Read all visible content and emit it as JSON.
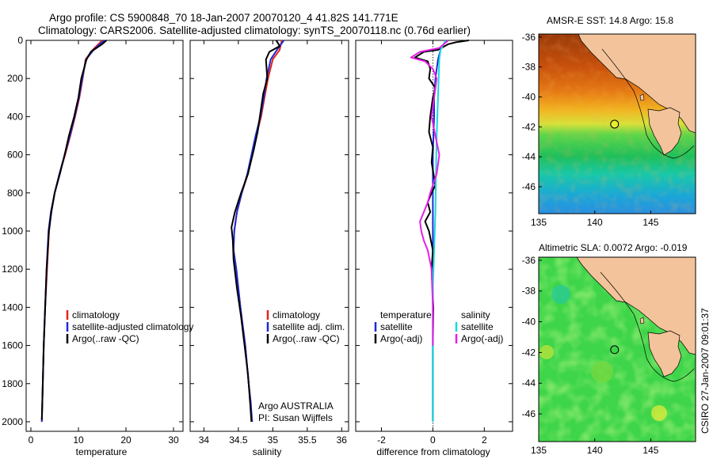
{
  "header": {
    "line1": "Argo profile: CS 5900848_70 18-Jan-2007 20070120_4 41.82S 141.771E",
    "line2": "Climatology: CARS2006. Satellite-adjusted climatology: synTS_20070118.nc (0.76d earlier)"
  },
  "side_note": "CSIRO 27-Jan-2007 09:01:37",
  "colors": {
    "climatology": "#e8211b",
    "satellite": "#1c2bd6",
    "argo": "#000000",
    "sat_salinity": "#17d8df",
    "argo_adj_salinity": "#e61fe6",
    "land": "#f3c39b"
  },
  "chart_data": [
    {
      "type": "line",
      "id": "temperature",
      "xlabel": "temperature",
      "ylabel": "",
      "xlim": [
        -1,
        32
      ],
      "ylim": [
        2050,
        0
      ],
      "xticks": [
        0,
        10,
        20,
        30
      ],
      "yticks": [
        0,
        200,
        400,
        600,
        800,
        1000,
        1200,
        1400,
        1600,
        1800,
        2000
      ],
      "legend": [
        "climatology",
        "satellite-adjusted climatology",
        "Argo(..raw -QC)"
      ],
      "series": [
        {
          "name": "climatology",
          "color": "#e8211b",
          "x": [
            15.0,
            14.2,
            13.0,
            11.5,
            10.9,
            10.2,
            9.3,
            8.3,
            7.2,
            6.0,
            5.0,
            4.3,
            3.8,
            3.4,
            3.0,
            2.7,
            2.5,
            2.4,
            2.3
          ],
          "y": [
            0,
            20,
            50,
            100,
            200,
            300,
            400,
            500,
            600,
            700,
            800,
            900,
            1000,
            1200,
            1400,
            1600,
            1800,
            1900,
            2000
          ]
        },
        {
          "name": "satellite",
          "color": "#1c2bd6",
          "x": [
            15.5,
            14.5,
            13.2,
            11.6,
            10.8,
            10.1,
            9.2,
            8.2,
            7.1,
            6.0,
            5.0,
            4.2,
            3.7,
            3.3,
            3.0,
            2.7,
            2.5,
            2.4,
            2.3
          ],
          "y": [
            0,
            20,
            50,
            100,
            200,
            300,
            400,
            500,
            600,
            700,
            800,
            900,
            1000,
            1200,
            1400,
            1600,
            1800,
            1900,
            2000
          ]
        },
        {
          "name": "Argo",
          "color": "#000000",
          "x": [
            15.9,
            15.0,
            12.6,
            11.7,
            10.6,
            10.0,
            9.1,
            8.0,
            7.1,
            6.1,
            5.0,
            4.3,
            3.8,
            3.3,
            3.0,
            2.7,
            2.5,
            2.4,
            2.3
          ],
          "y": [
            0,
            20,
            60,
            100,
            200,
            300,
            400,
            500,
            600,
            700,
            800,
            900,
            1000,
            1200,
            1400,
            1600,
            1800,
            1900,
            1990
          ]
        }
      ]
    },
    {
      "type": "line",
      "id": "salinity",
      "xlabel": "salinity",
      "xlim": [
        33.8,
        36.1
      ],
      "ylim": [
        2050,
        0
      ],
      "xticks": [
        34,
        34.5,
        35,
        35.5,
        36
      ],
      "legend": [
        "climatology",
        "satellite adj. clim.",
        "Argo(..raw -QC)"
      ],
      "annotation": [
        "Argo AUSTRALIA",
        "PI: Susan Wijffels"
      ],
      "series": [
        {
          "name": "climatology",
          "color": "#e8211b",
          "x": [
            35.13,
            35.1,
            35.0,
            34.93,
            34.88,
            34.83,
            34.76,
            34.7,
            34.64,
            34.55,
            34.48,
            34.44,
            34.43,
            34.47,
            34.53,
            34.6,
            34.65,
            34.68,
            34.69
          ],
          "y": [
            0,
            50,
            100,
            200,
            300,
            400,
            500,
            600,
            700,
            800,
            900,
            1000,
            1100,
            1200,
            1400,
            1600,
            1800,
            1900,
            2000
          ]
        },
        {
          "name": "satellite",
          "color": "#1c2bd6",
          "x": [
            35.16,
            35.06,
            34.97,
            34.91,
            34.87,
            34.82,
            34.75,
            34.69,
            34.63,
            34.55,
            34.48,
            34.44,
            34.43,
            34.47,
            34.53,
            34.6,
            34.65,
            34.68,
            34.7
          ],
          "y": [
            0,
            50,
            100,
            200,
            300,
            400,
            500,
            600,
            700,
            800,
            900,
            1000,
            1100,
            1200,
            1400,
            1600,
            1800,
            1900,
            2000
          ]
        },
        {
          "name": "Argo",
          "color": "#000000",
          "x": [
            35.05,
            35.1,
            34.95,
            34.9,
            34.92,
            34.86,
            34.82,
            34.78,
            34.72,
            34.64,
            34.54,
            34.45,
            34.4,
            34.42,
            34.43,
            34.48,
            34.54,
            34.59,
            34.64,
            34.67,
            34.69
          ],
          "y": [
            0,
            30,
            60,
            100,
            200,
            280,
            380,
            480,
            580,
            700,
            800,
            900,
            980,
            1050,
            1150,
            1300,
            1450,
            1600,
            1750,
            1900,
            2000
          ]
        }
      ]
    },
    {
      "type": "line",
      "id": "difference",
      "xlabel": "difference from climatology",
      "xlim": [
        -3,
        3.1
      ],
      "ylim": [
        2050,
        0
      ],
      "xticks": [
        -2,
        0,
        2
      ],
      "legend_left_title": "temperature",
      "legend_right_title": "salinity",
      "legend_left": [
        "satellite",
        "Argo(-adj)"
      ],
      "legend_right": [
        "satellite",
        "Argo(-adj)"
      ],
      "series": [
        {
          "name": "temperature satellite",
          "color": "#1c2bd6",
          "x": [
            0.5,
            0.3,
            0.2,
            0.1,
            0.05,
            0.05,
            0.0,
            0.0,
            0.0,
            0.0,
            0.0,
            0.0,
            0.0
          ],
          "y": [
            0,
            50,
            100,
            200,
            300,
            400,
            600,
            800,
            1000,
            1200,
            1400,
            1700,
            2000
          ]
        },
        {
          "name": "temperature Argo(-adj)",
          "color": "#000000",
          "x": [
            1.4,
            0.9,
            0.6,
            0.2,
            -0.35,
            -0.7,
            -0.2,
            -0.1,
            -0.15,
            0.1,
            0.0,
            -0.1,
            -0.15,
            0.0,
            -0.05,
            0.05,
            0.1,
            -0.05,
            -0.2,
            -0.1,
            -0.3,
            -0.15,
            0.0,
            -0.05,
            0.02,
            0.0,
            0.0,
            0.0
          ],
          "y": [
            0,
            10,
            20,
            50,
            60,
            90,
            110,
            150,
            200,
            250,
            300,
            400,
            480,
            560,
            640,
            720,
            760,
            800,
            850,
            900,
            950,
            1000,
            1100,
            1200,
            1400,
            1600,
            1800,
            1990
          ]
        },
        {
          "name": "salinity satellite",
          "color": "#17d8df",
          "x": [
            0.5,
            0.3,
            0.25,
            0.2,
            0.15,
            0.12,
            0.1,
            0.05,
            0.0,
            0.0,
            0.0
          ],
          "y": [
            0,
            50,
            100,
            300,
            500,
            700,
            900,
            1100,
            1300,
            1600,
            2000
          ]
        },
        {
          "name": "salinity Argo(-adj)",
          "color": "#e61fe6",
          "x": [
            0.6,
            0.25,
            -0.5,
            -0.85,
            -0.3,
            0.0,
            0.15,
            0.05,
            -0.05,
            0.1,
            0.25,
            0.15,
            -0.1,
            -0.2,
            -0.35,
            -0.5,
            -0.45,
            -0.35,
            -0.2,
            -0.05,
            0.0,
            0.0
          ],
          "y": [
            0,
            40,
            60,
            90,
            110,
            150,
            200,
            300,
            400,
            500,
            600,
            700,
            800,
            850,
            900,
            950,
            1000,
            1050,
            1100,
            1200,
            1400,
            1600
          ]
        }
      ]
    },
    {
      "type": "heatmap",
      "id": "sst_map",
      "title": "AMSR-E SST: 14.8 Argo: 15.8",
      "xlim": [
        135,
        149
      ],
      "ylim": [
        -47.8,
        -35.8
      ],
      "xticks": [
        135,
        140,
        145
      ],
      "yticks": [
        -36,
        -38,
        -40,
        -42,
        -44,
        -46
      ],
      "profile_point": {
        "lon": 141.771,
        "lat": -41.82
      }
    },
    {
      "type": "heatmap",
      "id": "sla_map",
      "title": "Altimetric SLA: 0.0072 Argo: -0.019",
      "xlim": [
        135,
        149
      ],
      "ylim": [
        -47.8,
        -35.8
      ],
      "xticks": [
        135,
        140,
        145
      ],
      "yticks": [
        -36,
        -38,
        -40,
        -42,
        -44,
        -46
      ],
      "profile_point": {
        "lon": 141.771,
        "lat": -41.82
      }
    }
  ]
}
